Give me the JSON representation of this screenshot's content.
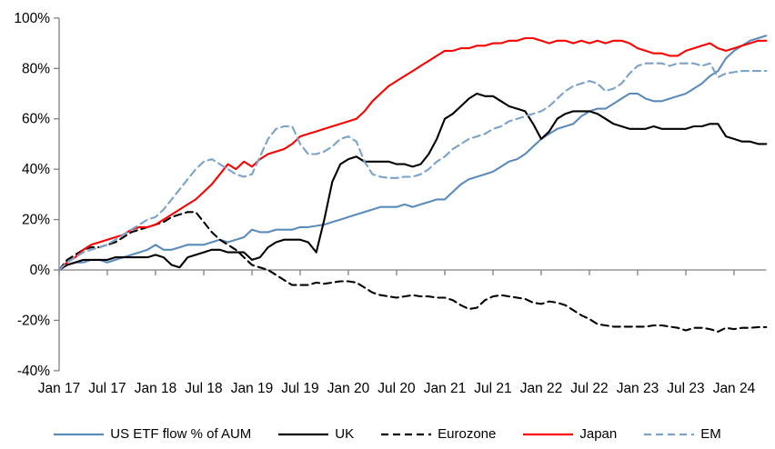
{
  "chart_data": {
    "type": "line",
    "title": "",
    "xlabel": "",
    "ylabel": "",
    "grid": false,
    "legend_position": "bottom",
    "ylim": [
      -40,
      100
    ],
    "y_tick_values": [
      100,
      80,
      60,
      40,
      20,
      0,
      -20,
      -40
    ],
    "y_tick_labels": [
      "100%",
      "80%",
      "60%",
      "40%",
      "20%",
      "0%",
      "-20%",
      "-40%"
    ],
    "x_tick_labels": [
      "Jan 17",
      "Jul 17",
      "Jan 18",
      "Jul 18",
      "Jan 19",
      "Jul 19",
      "Jan 20",
      "Jul 20",
      "Jan 21",
      "Jul 21",
      "Jan 22",
      "Jul 22",
      "Jan 23",
      "Jul 23",
      "Jan 24"
    ],
    "x_tick_months": [
      0,
      6,
      12,
      18,
      24,
      30,
      36,
      42,
      48,
      54,
      60,
      66,
      72,
      78,
      84
    ],
    "x_start": "Jan 2017",
    "x_step": "1 month",
    "axis_color": "#808080",
    "text_color": "#000000",
    "series": [
      {
        "name": "US ETF flow % of AUM",
        "color": "#5b8bbc",
        "style": "solid",
        "values": [
          0,
          2,
          3,
          3,
          4,
          4,
          3,
          4,
          5,
          6,
          7,
          8,
          10,
          8,
          8,
          9,
          10,
          10,
          10,
          11,
          12,
          11,
          12,
          13,
          16,
          15,
          15,
          16,
          16,
          16,
          17,
          17,
          17.5,
          18,
          19,
          20,
          21,
          22,
          23,
          24,
          25,
          25,
          25,
          26,
          25,
          26,
          27,
          28,
          28,
          31,
          34,
          36,
          37,
          38,
          39,
          41,
          43,
          44,
          46,
          49,
          52,
          54,
          56,
          57,
          58,
          61,
          63,
          64,
          64,
          66,
          68,
          70,
          70,
          68,
          67,
          67,
          68,
          69,
          70,
          72,
          74,
          77,
          79,
          84,
          87,
          89,
          91,
          92,
          93
        ]
      },
      {
        "name": "UK",
        "color": "#000000",
        "style": "solid",
        "values": [
          0,
          2,
          3,
          4,
          4,
          4,
          4,
          5,
          5,
          5,
          5,
          5,
          6,
          5,
          2,
          1,
          5,
          6,
          7,
          8,
          8,
          7,
          7,
          7,
          4,
          5,
          9,
          11,
          12,
          12,
          12,
          11,
          7,
          20,
          35,
          42,
          44,
          45,
          43,
          43,
          43,
          43,
          42,
          42,
          41,
          42,
          46,
          52,
          60,
          62,
          65,
          68,
          70,
          69,
          69,
          67,
          65,
          64,
          63,
          58,
          52,
          55,
          60,
          62,
          63,
          63,
          63,
          62,
          60,
          58,
          57,
          56,
          56,
          56,
          57,
          56,
          56,
          56,
          56,
          57,
          57,
          58,
          58,
          53,
          52,
          51,
          51,
          50,
          50
        ]
      },
      {
        "name": "Eurozone",
        "color": "#000000",
        "style": "dashed",
        "values": [
          0,
          4,
          6,
          8,
          9,
          9,
          10,
          11,
          13,
          15,
          16,
          17,
          18,
          19,
          21,
          22,
          23,
          23,
          19,
          15,
          12,
          10,
          8,
          5,
          2,
          1,
          0,
          -2,
          -4,
          -6,
          -6,
          -6,
          -5,
          -5.5,
          -5,
          -4.5,
          -4.5,
          -5,
          -7,
          -9,
          -10,
          -10.5,
          -11,
          -10.5,
          -10,
          -10.5,
          -10.5,
          -11,
          -11,
          -12,
          -14,
          -15.5,
          -15,
          -12,
          -10.5,
          -10,
          -10.5,
          -11,
          -11.5,
          -13,
          -13.5,
          -12.5,
          -13,
          -14,
          -16,
          -18,
          -19.5,
          -21.5,
          -22,
          -22.5,
          -22.5,
          -22.5,
          -22.5,
          -22.5,
          -22,
          -22,
          -22.5,
          -23,
          -24,
          -23,
          -23,
          -23.5,
          -24.5,
          -23,
          -23.5,
          -23,
          -23,
          -22.7,
          -22.7
        ]
      },
      {
        "name": "Japan",
        "color": "#ff0000",
        "style": "solid",
        "values": [
          0,
          3,
          5,
          8,
          10,
          11,
          12,
          13,
          14,
          16,
          17,
          17,
          18,
          20,
          22,
          24,
          26,
          28,
          31,
          34,
          38,
          42,
          40,
          43,
          41,
          44,
          46,
          47,
          48,
          50,
          53,
          54,
          55,
          56,
          57,
          58,
          59,
          60,
          63,
          67,
          70,
          73,
          75,
          77,
          79,
          81,
          83,
          85,
          87,
          87,
          88,
          88,
          89,
          89,
          90,
          90,
          91,
          91,
          92,
          92,
          91,
          90,
          91,
          91,
          90,
          91,
          90,
          91,
          90,
          91,
          91,
          90,
          88,
          87,
          86,
          86,
          85,
          85,
          87,
          88,
          89,
          90,
          88,
          87,
          88,
          89,
          90,
          91,
          91
        ]
      },
      {
        "name": "EM",
        "color": "#7ba2c9",
        "style": "dashed",
        "values": [
          0,
          3,
          5,
          7,
          8,
          9,
          10,
          12,
          14,
          16,
          18,
          20,
          21,
          24,
          28,
          32,
          36,
          40,
          43,
          44,
          42,
          40,
          38,
          37,
          38,
          45,
          52,
          56,
          57,
          57,
          50,
          46,
          46,
          47,
          49,
          52,
          53,
          51,
          43,
          38,
          37,
          36.5,
          36.5,
          37,
          37,
          38,
          40,
          43,
          45,
          48,
          50,
          52,
          53,
          54,
          56,
          57,
          59,
          60,
          61,
          62,
          63,
          65,
          68,
          71,
          73,
          74,
          75,
          74,
          71,
          72,
          74,
          78,
          81,
          82,
          82,
          82,
          81,
          82,
          82,
          82,
          81,
          82,
          76.5,
          78,
          78.5,
          79,
          79,
          79,
          79
        ]
      }
    ]
  }
}
